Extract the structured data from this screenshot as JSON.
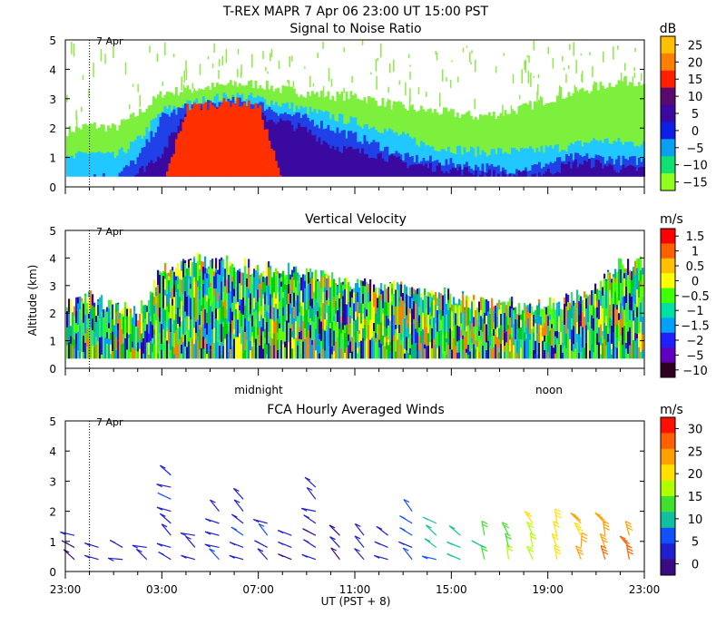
{
  "title": "T-REX  MAPR  7 Apr 06  23:00 UT  15:00  PST",
  "chart_data": [
    {
      "type": "heatmap",
      "title": "Signal to Noise Ratio",
      "ylim": [
        0,
        5
      ],
      "yticks": [
        "0",
        "1",
        "2",
        "3",
        "4",
        "5"
      ],
      "marker": "7 Apr",
      "colorbar": {
        "unit": "dB",
        "labels": [
          "25",
          "20",
          "15",
          "10",
          "5",
          "0",
          "−5",
          "−10",
          "−15"
        ],
        "colors": [
          "#ffc000",
          "#ff8000",
          "#ff2000",
          "#5a0a6e",
          "#3a0aa0",
          "#0a1ee6",
          "#0aa0f0",
          "#10e070",
          "#90ff20"
        ]
      },
      "layers": [
        {
          "name": "green",
          "color": "#7cf03c",
          "base": [
            1.9,
            2.1,
            2.0,
            2.5,
            3.2,
            3.3,
            3.4,
            3.5,
            3.5,
            3.3,
            3.2,
            3.1,
            3.1,
            2.9,
            2.7,
            2.6,
            2.5,
            2.4,
            2.5,
            2.7,
            3.0,
            3.2,
            3.4,
            3.6
          ]
        },
        {
          "name": "cyan",
          "color": "#20c8ff",
          "base": [
            0.9,
            1.2,
            1.0,
            1.6,
            2.6,
            2.8,
            3.0,
            3.1,
            3.0,
            2.8,
            2.6,
            2.4,
            2.2,
            2.0,
            1.7,
            1.4,
            1.3,
            1.2,
            1.2,
            1.2,
            1.3,
            1.4,
            1.6,
            1.5
          ]
        },
        {
          "name": "blue",
          "color": "#2040e8",
          "base": [
            0.0,
            0.4,
            0.3,
            1.0,
            2.4,
            2.7,
            2.8,
            2.9,
            2.8,
            2.5,
            2.3,
            2.0,
            1.7,
            1.4,
            1.0,
            0.9,
            0.8,
            0.7,
            0.6,
            0.6,
            0.8,
            1.0,
            1.0,
            0.9
          ]
        },
        {
          "name": "purple",
          "color": "#3a0aa0",
          "base": [
            0.0,
            0.0,
            0.0,
            0.5,
            1.2,
            2.6,
            2.6,
            2.7,
            2.4,
            2.2,
            1.9,
            1.4,
            1.2,
            1.1,
            0.8,
            0.7,
            0.6,
            0.5,
            0.4,
            0.4,
            0.5,
            0.8,
            0.8,
            0.6
          ]
        },
        {
          "name": "red",
          "color": "#ff3000",
          "base": [
            0,
            0,
            0,
            0,
            0,
            2.7,
            2.8,
            2.9,
            2.7,
            0,
            0,
            0,
            0,
            0,
            0,
            0,
            0,
            0,
            0,
            0,
            0,
            0,
            0,
            0
          ]
        }
      ]
    },
    {
      "type": "heatmap",
      "title": "Vertical Velocity",
      "ylabel": "Altitude (km)",
      "ylim": [
        0,
        5
      ],
      "yticks": [
        "0",
        "1",
        "2",
        "3",
        "4",
        "5"
      ],
      "marker": "7 Apr",
      "xmarks": [
        "midnight",
        "noon"
      ],
      "colorbar": {
        "unit": "m/s",
        "labels": [
          "1.5",
          "1",
          "0.5",
          "0",
          "−0.5",
          "−1",
          "−1.5",
          "−2",
          "−5",
          "−10"
        ],
        "colors": [
          "#ff0000",
          "#ff6000",
          "#ffc000",
          "#ffff00",
          "#40ff00",
          "#00e0a0",
          "#00a0ff",
          "#2020ff",
          "#6000c0",
          "#300020"
        ]
      },
      "tops": [
        2.2,
        2.6,
        2.2,
        2.0,
        3.6,
        3.9,
        3.9,
        3.8,
        3.6,
        3.6,
        3.4,
        3.2,
        3.0,
        3.0,
        2.9,
        2.7,
        2.6,
        2.4,
        2.4,
        2.2,
        2.3,
        2.5,
        3.0,
        3.8
      ],
      "palette": [
        "#00d000",
        "#20ff20",
        "#ffff00",
        "#00a0ff",
        "#2020ff",
        "#ff8000",
        "#40e060",
        "#60ff00",
        "#10c0c0",
        "#3000a0"
      ]
    },
    {
      "type": "scatter",
      "title": "FCA Hourly Averaged Winds",
      "ylim": [
        0,
        5
      ],
      "yticks": [
        "0",
        "1",
        "2",
        "3",
        "4",
        "5"
      ],
      "marker": "7 Apr",
      "xlabel": "UT  (PST + 8)",
      "xticks": [
        "23:00",
        "03:00",
        "07:00",
        "11:00",
        "15:00",
        "19:00",
        "23:00"
      ],
      "colorbar": {
        "unit": "m/s",
        "labels": [
          "30",
          "25",
          "20",
          "15",
          "10",
          "5",
          "0"
        ],
        "colors": [
          "#ff1000",
          "#ff6000",
          "#ffa000",
          "#ffe000",
          "#b0ff00",
          "#40e030",
          "#10c0a0",
          "#1050ff",
          "#2020d0",
          "#3a0a80"
        ]
      },
      "barbs": {
        "hours": [
          0,
          1,
          2,
          3,
          4,
          5,
          6,
          7,
          8,
          9,
          10,
          11,
          12,
          13,
          14,
          15,
          16,
          17,
          18,
          19,
          20,
          21,
          22,
          23
        ],
        "levels": [
          0.4,
          0.8,
          1.2,
          1.6,
          2.0,
          2.4,
          2.8,
          3.2
        ],
        "speed": [
          2,
          3,
          4,
          5,
          5,
          5,
          5,
          5,
          5,
          4,
          4,
          4,
          5,
          5,
          7,
          9,
          11,
          13,
          15,
          18,
          20,
          22,
          24,
          24
        ],
        "top": [
          1.4,
          0.9,
          0.9,
          1.1,
          3.4,
          1.5,
          2.2,
          2.5,
          1.6,
          1.2,
          2.8,
          1.5,
          1.3,
          1.5,
          2.0,
          1.9,
          1.5,
          1.4,
          1.2,
          1.6,
          1.7,
          1.7,
          1.7,
          1.2
        ]
      }
    }
  ]
}
